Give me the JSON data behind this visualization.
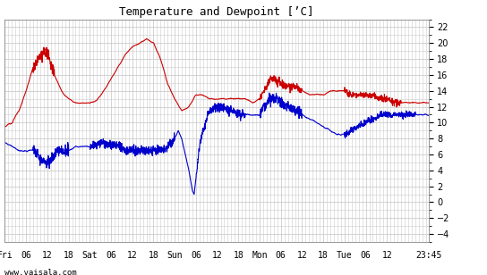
{
  "title": "Temperature and Dewpoint [’C]",
  "y_ticks": [
    -4,
    -2,
    0,
    2,
    4,
    6,
    8,
    10,
    12,
    14,
    16,
    18,
    20,
    22
  ],
  "ylim": [
    -5,
    23
  ],
  "xlim": [
    0,
    119.75
  ],
  "x_tick_positions": [
    0,
    6,
    12,
    18,
    24,
    30,
    36,
    42,
    48,
    54,
    60,
    66,
    72,
    78,
    84,
    90,
    96,
    102,
    108,
    119.75
  ],
  "x_tick_labels": [
    "Fri",
    "06",
    "12",
    "18",
    "Sat",
    "06",
    "12",
    "18",
    "Sun",
    "06",
    "12",
    "18",
    "Mon",
    "06",
    "12",
    "18",
    "Tue",
    "06",
    "12",
    "23:45"
  ],
  "watermark": "www.vaisala.com",
  "bg_color": "#ffffff",
  "plot_bg": "#ffffff",
  "grid_color": "#cccccc",
  "temp_color": "#cc0000",
  "dew_color": "#0000cc",
  "line_width": 0.8,
  "temp_ctrl": [
    [
      0,
      9.5
    ],
    [
      2,
      10
    ],
    [
      4,
      11.5
    ],
    [
      6,
      14
    ],
    [
      8,
      17
    ],
    [
      9,
      17.5
    ],
    [
      10,
      18.5
    ],
    [
      11,
      19
    ],
    [
      12,
      18.5
    ],
    [
      13,
      17.5
    ],
    [
      14,
      16
    ],
    [
      16,
      14
    ],
    [
      18,
      13
    ],
    [
      20,
      12.5
    ],
    [
      22,
      12.5
    ],
    [
      24,
      12.5
    ],
    [
      26,
      12.8
    ],
    [
      28,
      14
    ],
    [
      30,
      15.5
    ],
    [
      32,
      17
    ],
    [
      34,
      18.5
    ],
    [
      36,
      19.5
    ],
    [
      38,
      20
    ],
    [
      40,
      20.5
    ],
    [
      42,
      20
    ],
    [
      44,
      18
    ],
    [
      46,
      15
    ],
    [
      48,
      13
    ],
    [
      50,
      11.5
    ],
    [
      52,
      12
    ],
    [
      54,
      13.5
    ],
    [
      56,
      13.5
    ],
    [
      58,
      13
    ],
    [
      60,
      13
    ],
    [
      62,
      13
    ],
    [
      64,
      13
    ],
    [
      66,
      13
    ],
    [
      68,
      13
    ],
    [
      70,
      12.5
    ],
    [
      72,
      13
    ],
    [
      74,
      14.5
    ],
    [
      75,
      15.5
    ],
    [
      76,
      15.5
    ],
    [
      78,
      15
    ],
    [
      80,
      14.5
    ],
    [
      82,
      14.5
    ],
    [
      84,
      14
    ],
    [
      86,
      13.5
    ],
    [
      88,
      13.5
    ],
    [
      90,
      13.5
    ],
    [
      92,
      14
    ],
    [
      94,
      14
    ],
    [
      96,
      14
    ],
    [
      98,
      13.5
    ],
    [
      100,
      13.5
    ],
    [
      102,
      13.5
    ],
    [
      104,
      13.5
    ],
    [
      106,
      13
    ],
    [
      108,
      13
    ],
    [
      110,
      12.5
    ],
    [
      112,
      12.5
    ],
    [
      114,
      12.5
    ],
    [
      116,
      12.5
    ],
    [
      119.75,
      12.5
    ]
  ],
  "dew_ctrl": [
    [
      0,
      7.5
    ],
    [
      2,
      7
    ],
    [
      4,
      6.5
    ],
    [
      6,
      6.5
    ],
    [
      8,
      6.5
    ],
    [
      9,
      6
    ],
    [
      10,
      5.5
    ],
    [
      11,
      5
    ],
    [
      12,
      5
    ],
    [
      13,
      5.5
    ],
    [
      14,
      6
    ],
    [
      15,
      6.5
    ],
    [
      16,
      6.5
    ],
    [
      18,
      6.5
    ],
    [
      20,
      7
    ],
    [
      22,
      7
    ],
    [
      24,
      7
    ],
    [
      26,
      7.2
    ],
    [
      28,
      7.5
    ],
    [
      30,
      7
    ],
    [
      32,
      7
    ],
    [
      34,
      6.5
    ],
    [
      36,
      6.5
    ],
    [
      38,
      6.5
    ],
    [
      40,
      6.5
    ],
    [
      42,
      6.5
    ],
    [
      44,
      6.5
    ],
    [
      46,
      7
    ],
    [
      48,
      8
    ],
    [
      49,
      9
    ],
    [
      50,
      8
    ],
    [
      51,
      6
    ],
    [
      52,
      4
    ],
    [
      53,
      1.5
    ],
    [
      53.5,
      1
    ],
    [
      54,
      3
    ],
    [
      55,
      7
    ],
    [
      56,
      9
    ],
    [
      57,
      10.5
    ],
    [
      58,
      11.5
    ],
    [
      60,
      12
    ],
    [
      62,
      12
    ],
    [
      64,
      11.5
    ],
    [
      66,
      11
    ],
    [
      68,
      11
    ],
    [
      70,
      11
    ],
    [
      72,
      11
    ],
    [
      74,
      12.5
    ],
    [
      75,
      13
    ],
    [
      76,
      13
    ],
    [
      77,
      13
    ],
    [
      78,
      12.5
    ],
    [
      80,
      12
    ],
    [
      82,
      11.5
    ],
    [
      84,
      11
    ],
    [
      86,
      10.5
    ],
    [
      88,
      10
    ],
    [
      90,
      9.5
    ],
    [
      92,
      9
    ],
    [
      94,
      8.5
    ],
    [
      96,
      8.5
    ],
    [
      98,
      9
    ],
    [
      100,
      9.5
    ],
    [
      102,
      10
    ],
    [
      104,
      10.5
    ],
    [
      106,
      11
    ],
    [
      108,
      11
    ],
    [
      110,
      11
    ],
    [
      112,
      11
    ],
    [
      114,
      11
    ],
    [
      116,
      11
    ],
    [
      119.75,
      11
    ]
  ]
}
